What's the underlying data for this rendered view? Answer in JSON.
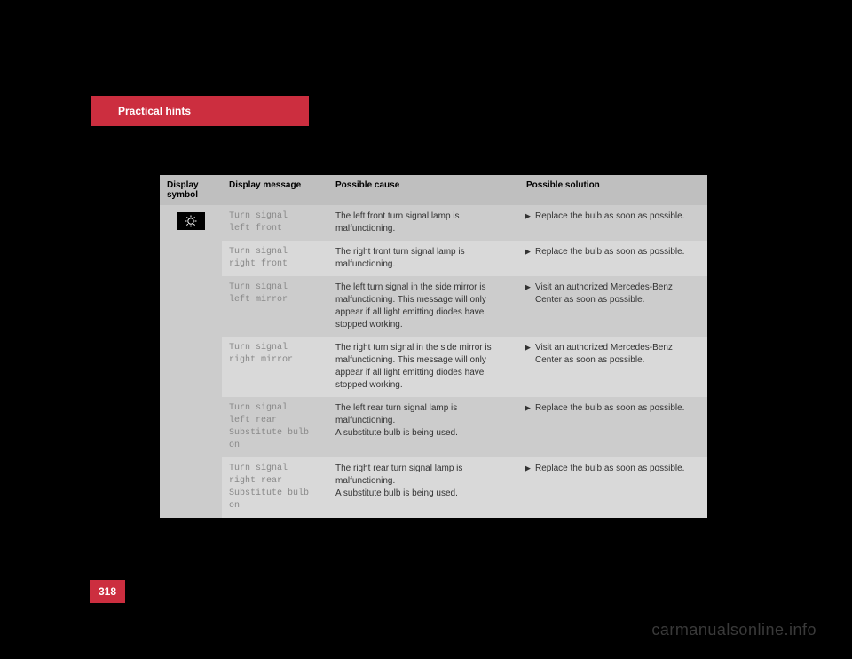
{
  "header": {
    "title": "Practical hints"
  },
  "page_number": "318",
  "watermark": "carmanualsonline.info",
  "table": {
    "columns": {
      "symbol": "Display symbol",
      "message": "Display message",
      "cause": "Possible cause",
      "solution": "Possible solution"
    },
    "rows": [
      {
        "shade": "dark",
        "message": "Turn signal\nleft front",
        "cause": "The left front turn signal lamp is malfunctioning.",
        "solution": "Replace the bulb as soon as possible."
      },
      {
        "shade": "light",
        "message": "Turn signal\nright front",
        "cause": "The right front turn signal lamp is malfunctioning.",
        "solution": "Replace the bulb as soon as possible."
      },
      {
        "shade": "dark",
        "message": "Turn signal\nleft mirror",
        "cause": "The left turn signal in the side mirror is malfunctioning. This message will only appear if all light emitting diodes have stopped working.",
        "solution": "Visit an authorized Mercedes-Benz Center as soon as possible."
      },
      {
        "shade": "light",
        "message": "Turn signal\nright mirror",
        "cause": "The right turn signal in the side mirror is malfunctioning. This message will only appear if all light emitting diodes have stopped working.",
        "solution": "Visit an authorized Mercedes-Benz Center as soon as possible."
      },
      {
        "shade": "dark",
        "message": "Turn signal\nleft rear\nSubstitute bulb on",
        "cause": "The left rear turn signal lamp is malfunctioning.\nA substitute bulb is being used.",
        "solution": "Replace the bulb as soon as possible."
      },
      {
        "shade": "light",
        "message": "Turn signal\nright rear\nSubstitute bulb on",
        "cause": "The right rear turn signal lamp is malfunctioning.\nA substitute bulb is being used.",
        "solution": "Replace the bulb as soon as possible."
      }
    ]
  }
}
